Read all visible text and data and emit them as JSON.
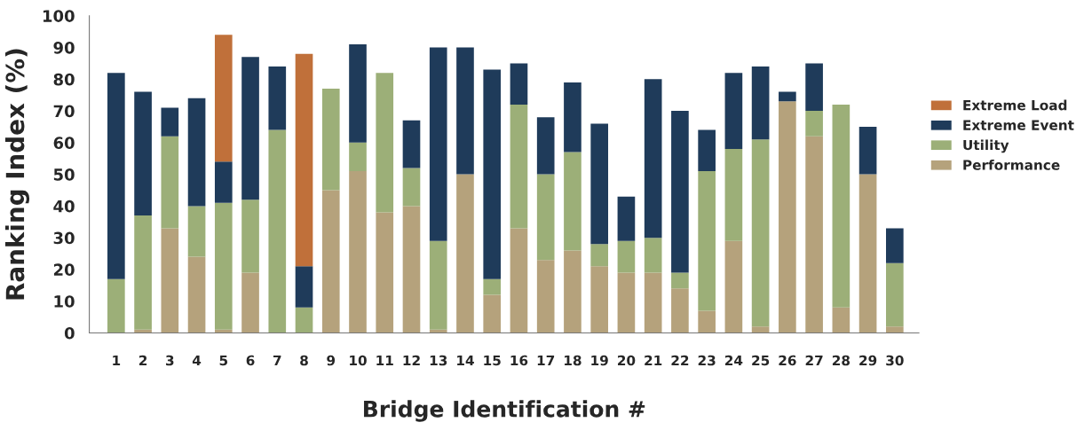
{
  "chart_data": {
    "type": "bar",
    "stacked": true,
    "xlabel": "Bridge Identification #",
    "ylabel": "Ranking Index (%)",
    "categories": [
      "1",
      "2",
      "3",
      "4",
      "5",
      "6",
      "7",
      "8",
      "9",
      "10",
      "11",
      "12",
      "13",
      "14",
      "15",
      "16",
      "17",
      "18",
      "19",
      "20",
      "21",
      "22",
      "23",
      "24",
      "25",
      "26",
      "27",
      "28",
      "29",
      "30"
    ],
    "series": [
      {
        "name": "Performance",
        "color": "#b5a27c",
        "values": [
          0,
          1,
          33,
          24,
          1,
          19,
          0,
          0,
          45,
          51,
          38,
          40,
          1,
          50,
          12,
          33,
          23,
          26,
          21,
          19,
          19,
          14,
          7,
          29,
          2,
          73,
          62,
          8,
          50,
          2
        ]
      },
      {
        "name": "Utility",
        "color": "#9caf78",
        "values": [
          17,
          36,
          29,
          16,
          40,
          23,
          64,
          8,
          32,
          9,
          44,
          12,
          28,
          0,
          5,
          39,
          27,
          31,
          7,
          10,
          11,
          5,
          44,
          29,
          59,
          0,
          8,
          64,
          0,
          20
        ]
      },
      {
        "name": "Extreme Event",
        "color": "#1f3b5a",
        "values": [
          65,
          39,
          9,
          34,
          13,
          45,
          20,
          13,
          0,
          31,
          0,
          15,
          61,
          40,
          66,
          13,
          18,
          22,
          38,
          14,
          50,
          51,
          13,
          24,
          23,
          3,
          15,
          0,
          15,
          11
        ]
      },
      {
        "name": "Extreme Load",
        "color": "#c0703a",
        "values": [
          0,
          0,
          0,
          0,
          40,
          0,
          0,
          67,
          0,
          0,
          0,
          0,
          0,
          0,
          0,
          0,
          0,
          0,
          0,
          0,
          0,
          0,
          0,
          0,
          0,
          0,
          0,
          0,
          0,
          0
        ]
      }
    ],
    "ylim": [
      0,
      100
    ],
    "yticks": [
      0,
      10,
      20,
      30,
      40,
      50,
      60,
      70,
      80,
      90,
      100
    ],
    "legend": "right"
  }
}
